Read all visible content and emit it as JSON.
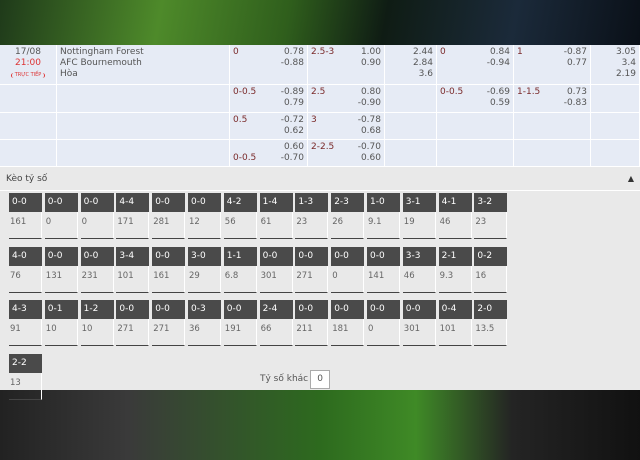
{
  "match": {
    "date": "17/08",
    "time": "21:00",
    "live_label": "TRỰC TIẾP",
    "home": "Nottingham Forest",
    "away": "AFC Bournemouth",
    "draw": "Hòa"
  },
  "rows": [
    {
      "hcp": "0",
      "hcp_odds": [
        "0.78",
        "-0.88"
      ],
      "ou": "2.5-3",
      "ou_odds": [
        "1.00",
        "0.90"
      ],
      "x12": [
        "2.44",
        "2.84",
        "3.6"
      ],
      "h1_hcp": "0",
      "h1_hcp_odds": [
        "0.84",
        "-0.94"
      ],
      "h1_ou": "1",
      "h1_ou_odds": [
        "-0.87",
        "0.77"
      ],
      "h1_x12": [
        "3.05",
        "3.4",
        "2.19"
      ]
    },
    {
      "hcp": "0-0.5",
      "hcp_odds": [
        "-0.89",
        "0.79"
      ],
      "ou": "2.5",
      "ou_odds": [
        "0.80",
        "-0.90"
      ],
      "x12": [],
      "h1_hcp": "0-0.5",
      "h1_hcp_odds": [
        "-0.69",
        "0.59"
      ],
      "h1_ou": "1-1.5",
      "h1_ou_odds": [
        "0.73",
        "-0.83"
      ],
      "h1_x12": []
    },
    {
      "hcp": "0.5",
      "hcp_odds": [
        "-0.72",
        "0.62"
      ],
      "ou": "3",
      "ou_odds": [
        "-0.78",
        "0.68"
      ],
      "x12": [],
      "h1_hcp": "",
      "h1_hcp_odds": [],
      "h1_ou": "",
      "h1_ou_odds": [],
      "h1_x12": []
    },
    {
      "hcp": "0-0.5",
      "hcp_odds": [
        "0.60",
        "-0.70"
      ],
      "ou": "2-2.5",
      "ou_odds": [
        "-0.70",
        "0.60"
      ],
      "x12": [],
      "h1_hcp": "",
      "h1_hcp_odds": [],
      "h1_ou": "",
      "h1_ou_odds": [],
      "h1_x12": []
    }
  ],
  "score_section": {
    "title": "Kèo tỷ số",
    "other_label": "Tỷ số khác",
    "other_value": "0",
    "cards": [
      [
        "0-0",
        "161"
      ],
      [
        "0-0",
        "0"
      ],
      [
        "0-0",
        "0"
      ],
      [
        "4-4",
        "171"
      ],
      [
        "0-0",
        "281"
      ],
      [
        "0-0",
        "12"
      ],
      [
        "4-2",
        "56"
      ],
      [
        "1-4",
        "61"
      ],
      [
        "1-3",
        "23"
      ],
      [
        "2-3",
        "26"
      ],
      [
        "1-0",
        "9.1"
      ],
      [
        "3-1",
        "19"
      ],
      [
        "4-1",
        "46"
      ],
      [
        "3-2",
        "23"
      ],
      [
        "4-0",
        "76"
      ],
      [
        "0-0",
        "131"
      ],
      [
        "0-0",
        "231"
      ],
      [
        "3-4",
        "101"
      ],
      [
        "0-0",
        "161"
      ],
      [
        "3-0",
        "29"
      ],
      [
        "1-1",
        "6.8"
      ],
      [
        "0-0",
        "301"
      ],
      [
        "0-0",
        "271"
      ],
      [
        "0-0",
        "0"
      ],
      [
        "0-0",
        "141"
      ],
      [
        "3-3",
        "46"
      ],
      [
        "2-1",
        "9.3"
      ],
      [
        "0-2",
        "16"
      ],
      [
        "4-3",
        "91"
      ],
      [
        "0-1",
        "10"
      ],
      [
        "1-2",
        "10"
      ],
      [
        "0-0",
        "271"
      ],
      [
        "0-0",
        "271"
      ],
      [
        "0-3",
        "36"
      ],
      [
        "0-0",
        "191"
      ],
      [
        "2-4",
        "66"
      ],
      [
        "0-0",
        "211"
      ],
      [
        "0-0",
        "181"
      ],
      [
        "0-0",
        "0"
      ],
      [
        "0-0",
        "301"
      ],
      [
        "0-4",
        "101"
      ],
      [
        "2-0",
        "13.5"
      ],
      [
        "2-2",
        "13"
      ]
    ]
  },
  "icons": {
    "collapse": "triangle-up-icon"
  }
}
